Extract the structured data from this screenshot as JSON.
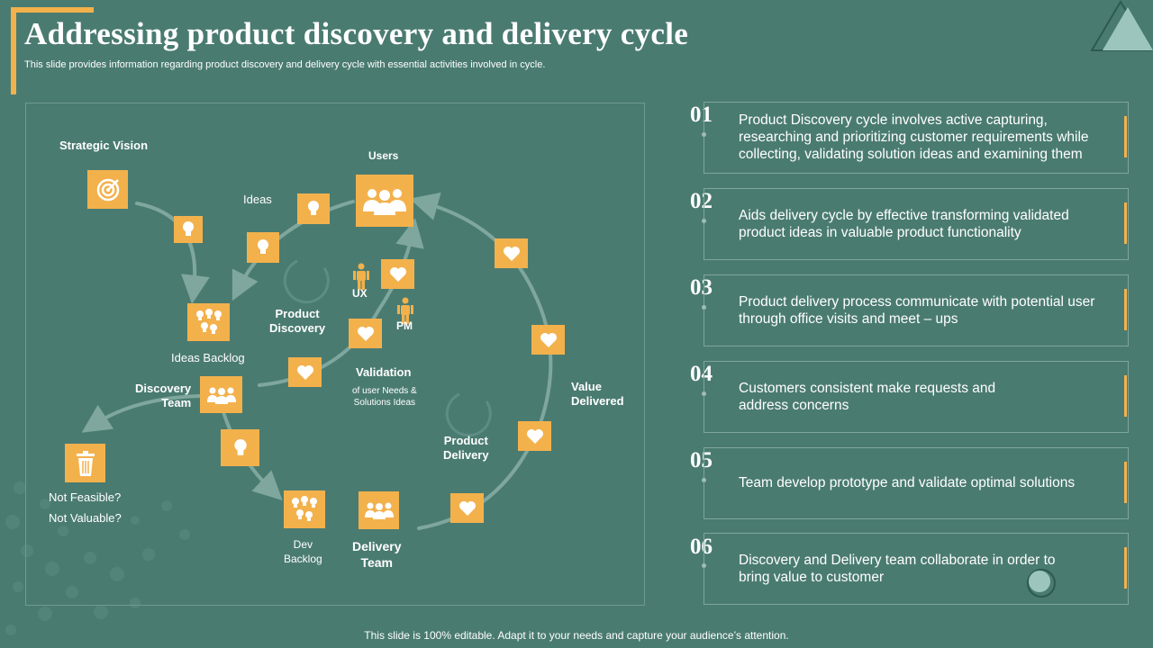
{
  "header": {
    "title": "Addressing product discovery and delivery cycle",
    "subtitle": "This slide provides information regarding product discovery and delivery cycle with essential activities involved in cycle."
  },
  "footer": {
    "text": "This slide is 100% editable. Adapt it to your needs and capture your audience’s attention."
  },
  "colors": {
    "background": "#4a7b71",
    "accent": "#f3b14c",
    "arrow": "#7fa79e"
  },
  "diagram": {
    "strategic_vision": "Strategic Vision",
    "users": "Users",
    "ideas": "Ideas",
    "ux": "UX",
    "pm": "PM",
    "product_discovery": "Product\nDiscovery",
    "ideas_backlog": "Ideas Backlog",
    "discovery_team": "Discovery\nTeam",
    "validation": "Validation",
    "validation_sub": "of user Needs &\nSolutions Ideas",
    "value_delivered": "Value\nDelivered",
    "product_delivery": "Product\nDelivery",
    "not_feasible": "Not Feasible?",
    "not_valuable": "Not Valuable?",
    "dev_backlog": "Dev\nBacklog",
    "delivery_team": "Delivery\nTeam"
  },
  "points": [
    {
      "num": "01",
      "text": "Product Discovery cycle involves active capturing, researching and prioritizing customer requirements while collecting, validating solution ideas and examining them"
    },
    {
      "num": "02",
      "text": "Aids delivery cycle by effective transforming validated product ideas in valuable product functionality"
    },
    {
      "num": "03",
      "text": "Product delivery process communicate with potential user through office visits and meet – ups"
    },
    {
      "num": "04",
      "text": "Customers consistent make requests and address concerns"
    },
    {
      "num": "05",
      "text": "Team develop prototype and validate optimal solutions"
    },
    {
      "num": "06",
      "text": "Discovery and Delivery team  collaborate in order to bring value to customer"
    }
  ]
}
